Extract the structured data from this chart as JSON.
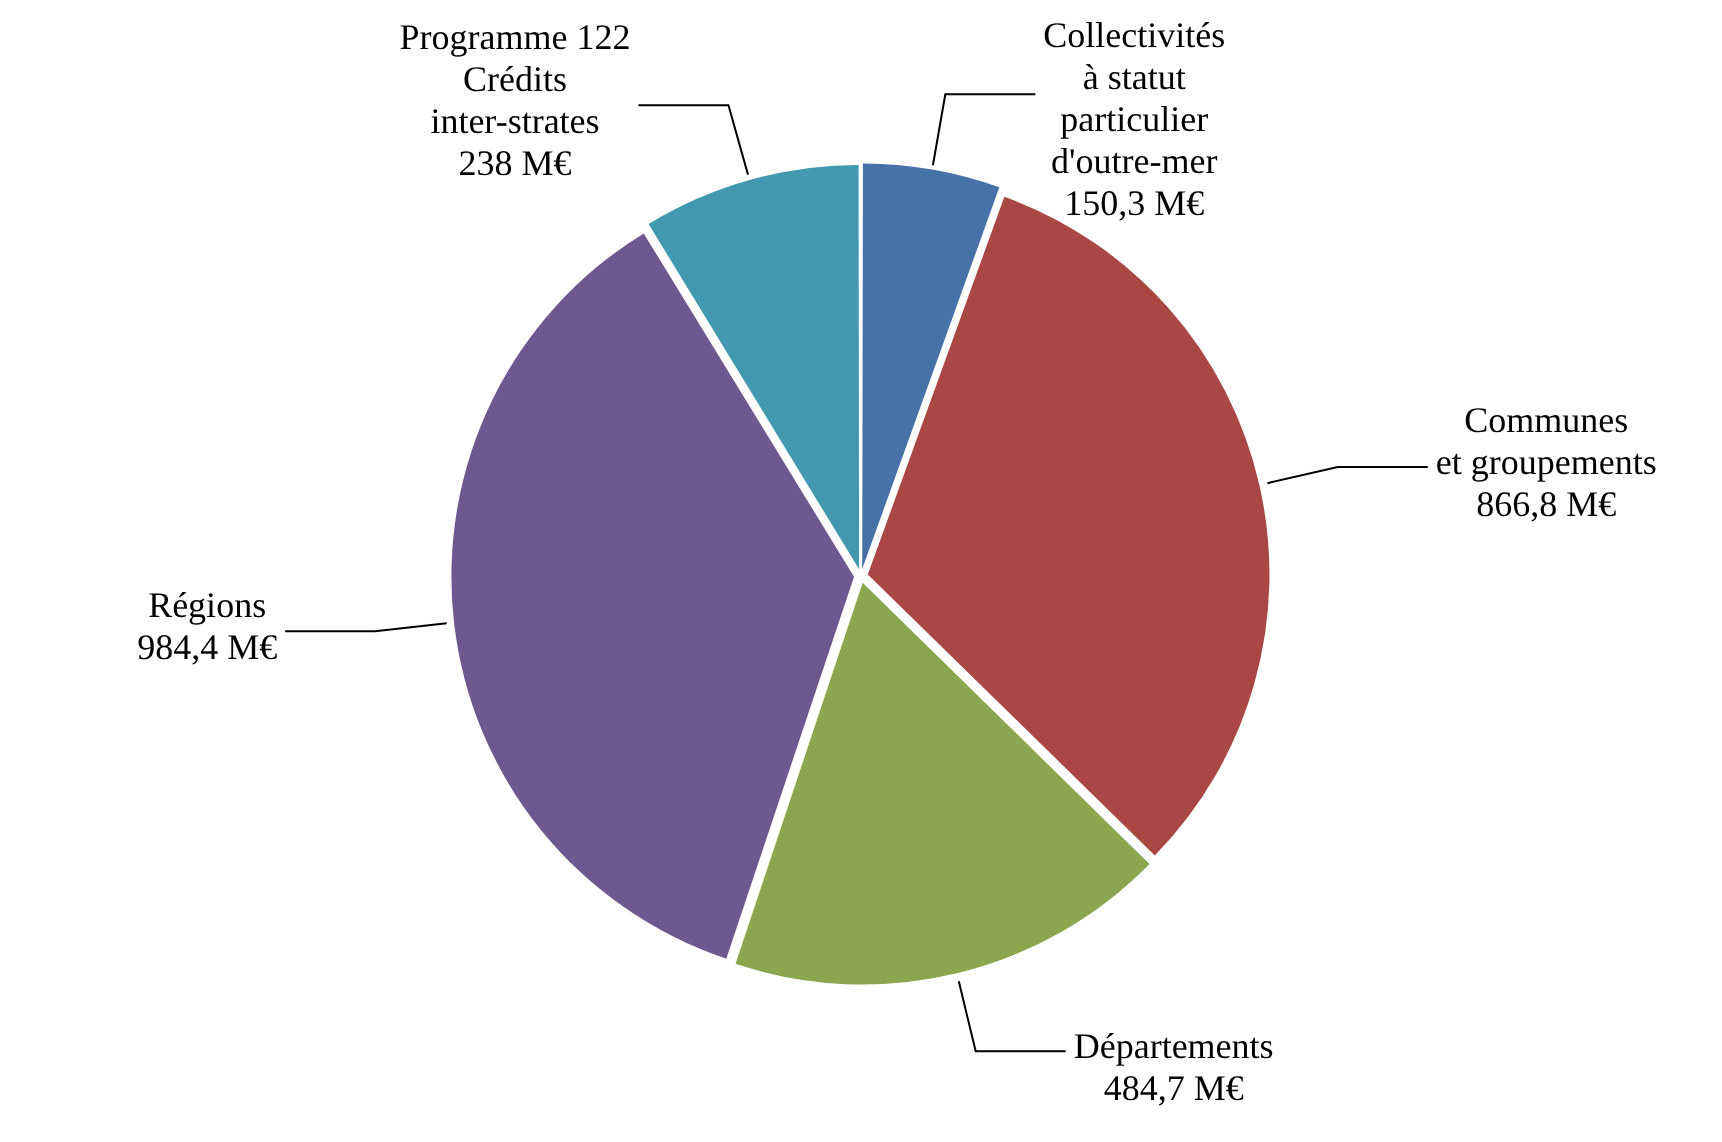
{
  "chart_data": {
    "type": "pie",
    "categories": [
      "Collectivités\nà statut\nparticulier\nd'outre-mer",
      "Communes\net groupements",
      "Départements",
      "Régions",
      "Programme 122\nCrédits\ninter-strates"
    ],
    "values": [
      150.3,
      866.8,
      484.7,
      984.4,
      238
    ],
    "value_labels": [
      "150,3 M€",
      "866,8 M€",
      "484,7 M€",
      "984,4 M€",
      "238 M€"
    ],
    "colors": [
      "#4672a8",
      "#a84744",
      "#8aa64f",
      "#6f578f",
      "#4198af"
    ],
    "legend": false
  }
}
